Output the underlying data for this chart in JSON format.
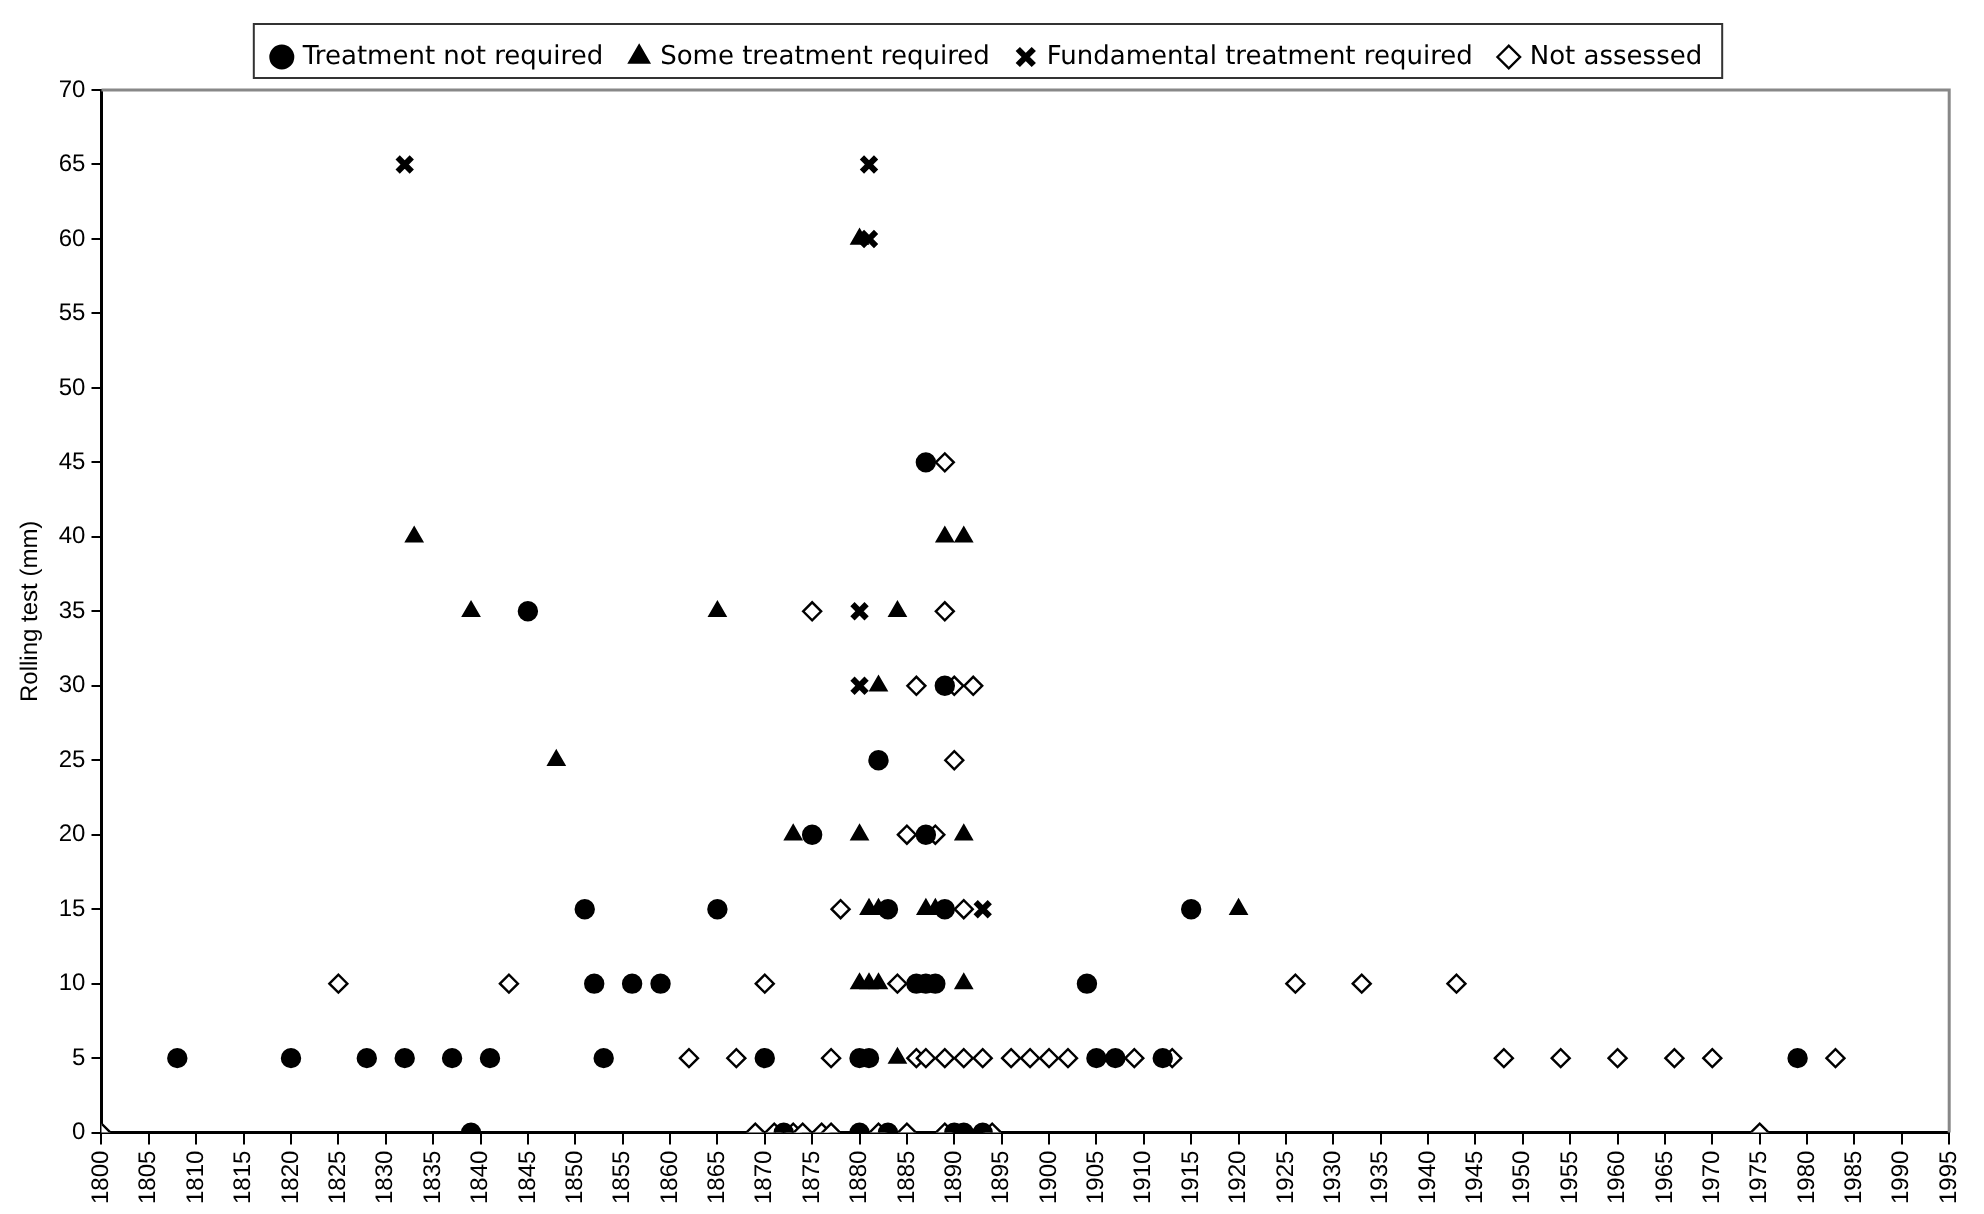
{
  "chart_data": {
    "type": "scatter",
    "ylabel": "Rolling test (mm)",
    "legend": "top",
    "grid": false,
    "xlim": [
      1800,
      1995
    ],
    "xticks": [
      1800,
      1805,
      1810,
      1815,
      1820,
      1825,
      1830,
      1835,
      1840,
      1845,
      1850,
      1855,
      1860,
      1865,
      1870,
      1875,
      1880,
      1885,
      1890,
      1895,
      1900,
      1905,
      1910,
      1915,
      1920,
      1925,
      1930,
      1935,
      1940,
      1945,
      1950,
      1955,
      1960,
      1965,
      1970,
      1975,
      1980,
      1985,
      1990,
      1995
    ],
    "ylim": [
      0,
      70
    ],
    "yticks": [
      0,
      5,
      10,
      15,
      20,
      25,
      30,
      35,
      40,
      45,
      50,
      55,
      60,
      65,
      70
    ],
    "series": [
      {
        "name": "Treatment not required",
        "color": "#000000",
        "marker": "circle",
        "x": [
          1808,
          1820,
          1828,
          1832,
          1837,
          1839,
          1841,
          1845,
          1851,
          1852,
          1853,
          1856,
          1859,
          1865,
          1870,
          1872,
          1875,
          1880,
          1880,
          1881,
          1882,
          1883,
          1883,
          1886,
          1887,
          1888,
          1887,
          1887,
          1889,
          1889,
          1890,
          1891,
          1893,
          1904,
          1905,
          1907,
          1912,
          1915,
          1979
        ],
        "values": [
          5,
          5,
          5,
          5,
          5,
          0,
          5,
          35,
          15,
          10,
          5,
          10,
          10,
          15,
          5,
          0,
          20,
          5,
          0,
          5,
          25,
          0,
          15,
          10,
          10,
          10,
          20,
          45,
          15,
          30,
          0,
          0,
          0,
          10,
          5,
          5,
          5,
          15,
          5
        ]
      },
      {
        "name": "Some treatment required",
        "color": "#000000",
        "marker": "triangle",
        "x": [
          1833,
          1839,
          1848,
          1865,
          1873,
          1880,
          1880,
          1881,
          1882,
          1881,
          1882,
          1884,
          1880,
          1882,
          1884,
          1887,
          1888,
          1889,
          1891,
          1891,
          1891,
          1920
        ],
        "values": [
          40,
          35,
          25,
          35,
          20,
          20,
          10,
          10,
          10,
          15,
          15,
          5,
          60,
          30,
          35,
          15,
          15,
          40,
          40,
          20,
          10,
          15
        ]
      },
      {
        "name": "Fundamental treatment required",
        "color": "#000000",
        "marker": "cross",
        "x": [
          1832,
          1881,
          1881,
          1880,
          1880,
          1893
        ],
        "values": [
          65,
          65,
          60,
          35,
          30,
          15
        ]
      },
      {
        "name": "Not assessed",
        "color": "#000000",
        "marker": "diamond",
        "x": [
          1800,
          1825,
          1843,
          1862,
          1867,
          1869,
          1870,
          1871,
          1873,
          1874,
          1876,
          1877,
          1877,
          1878,
          1875,
          1882,
          1884,
          1885,
          1886,
          1887,
          1885,
          1886,
          1888,
          1889,
          1889,
          1889,
          1889,
          1890,
          1890,
          1891,
          1891,
          1893,
          1892,
          1894,
          1896,
          1898,
          1900,
          1902,
          1909,
          1913,
          1926,
          1933,
          1943,
          1948,
          1954,
          1960,
          1966,
          1970,
          1975,
          1983
        ],
        "values": [
          0,
          10,
          10,
          5,
          5,
          0,
          10,
          0,
          0,
          0,
          0,
          0,
          5,
          15,
          35,
          0,
          10,
          0,
          5,
          5,
          20,
          30,
          20,
          0,
          5,
          35,
          45,
          25,
          30,
          15,
          5,
          5,
          30,
          0,
          5,
          5,
          5,
          5,
          5,
          5,
          10,
          10,
          10,
          5,
          5,
          5,
          5,
          5,
          0,
          5
        ]
      }
    ]
  }
}
